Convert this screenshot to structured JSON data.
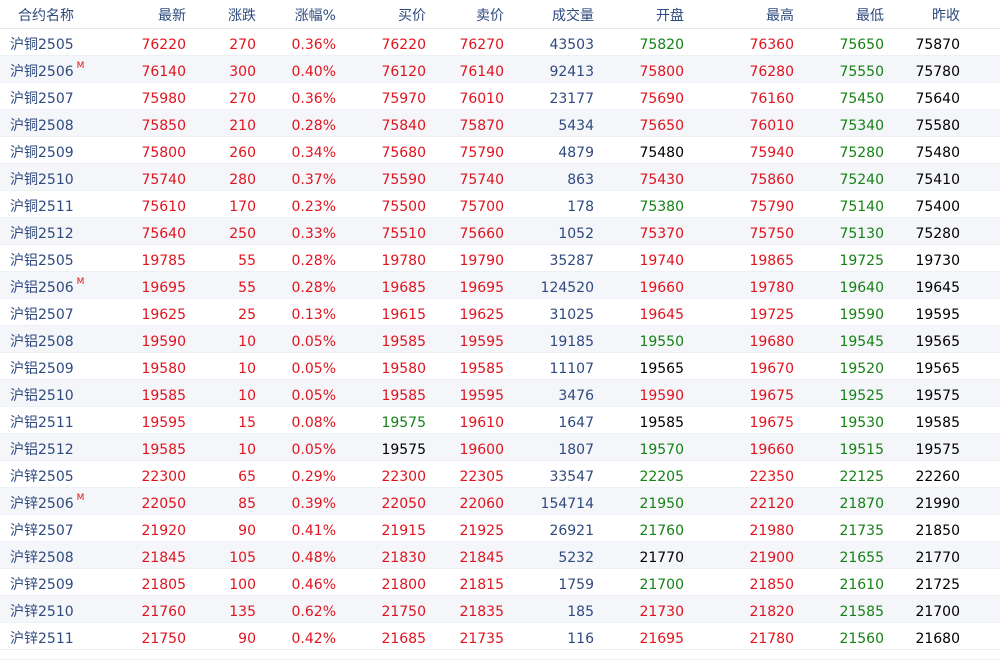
{
  "columns": {
    "name": "合约名称",
    "last": "最新",
    "change": "涨跌",
    "pct": "涨幅%",
    "bid": "买价",
    "ask": "卖价",
    "volume": "成交量",
    "open": "开盘",
    "high": "最高",
    "low": "最低",
    "prev": "昨收"
  },
  "colors": {
    "up": "#e1141e",
    "down": "#148214",
    "flat": "#000000",
    "label": "#2f4a7f"
  },
  "rows": [
    {
      "name": "沪铜2505",
      "mark": "",
      "last": "76220",
      "change": "270",
      "pct": "0.36%",
      "bid": "76220",
      "ask": "76270",
      "volume": "43503",
      "open": "75820",
      "high": "76360",
      "low": "75650",
      "prev": "75870"
    },
    {
      "name": "沪铜2506",
      "mark": "M",
      "last": "76140",
      "change": "300",
      "pct": "0.40%",
      "bid": "76120",
      "ask": "76140",
      "volume": "92413",
      "open": "75800",
      "high": "76280",
      "low": "75550",
      "prev": "75780"
    },
    {
      "name": "沪铜2507",
      "mark": "",
      "last": "75980",
      "change": "270",
      "pct": "0.36%",
      "bid": "75970",
      "ask": "76010",
      "volume": "23177",
      "open": "75690",
      "high": "76160",
      "low": "75450",
      "prev": "75640"
    },
    {
      "name": "沪铜2508",
      "mark": "",
      "last": "75850",
      "change": "210",
      "pct": "0.28%",
      "bid": "75840",
      "ask": "75870",
      "volume": "5434",
      "open": "75650",
      "high": "76010",
      "low": "75340",
      "prev": "75580"
    },
    {
      "name": "沪铜2509",
      "mark": "",
      "last": "75800",
      "change": "260",
      "pct": "0.34%",
      "bid": "75680",
      "ask": "75790",
      "volume": "4879",
      "open": "75480",
      "high": "75940",
      "low": "75280",
      "prev": "75480"
    },
    {
      "name": "沪铜2510",
      "mark": "",
      "last": "75740",
      "change": "280",
      "pct": "0.37%",
      "bid": "75590",
      "ask": "75740",
      "volume": "863",
      "open": "75430",
      "high": "75860",
      "low": "75240",
      "prev": "75410"
    },
    {
      "name": "沪铜2511",
      "mark": "",
      "last": "75610",
      "change": "170",
      "pct": "0.23%",
      "bid": "75500",
      "ask": "75700",
      "volume": "178",
      "open": "75380",
      "high": "75790",
      "low": "75140",
      "prev": "75400"
    },
    {
      "name": "沪铜2512",
      "mark": "",
      "last": "75640",
      "change": "250",
      "pct": "0.33%",
      "bid": "75510",
      "ask": "75660",
      "volume": "1052",
      "open": "75370",
      "high": "75750",
      "low": "75130",
      "prev": "75280"
    },
    {
      "name": "沪铝2505",
      "mark": "",
      "last": "19785",
      "change": "55",
      "pct": "0.28%",
      "bid": "19780",
      "ask": "19790",
      "volume": "35287",
      "open": "19740",
      "high": "19865",
      "low": "19725",
      "prev": "19730"
    },
    {
      "name": "沪铝2506",
      "mark": "M",
      "last": "19695",
      "change": "55",
      "pct": "0.28%",
      "bid": "19685",
      "ask": "19695",
      "volume": "124520",
      "open": "19660",
      "high": "19780",
      "low": "19640",
      "prev": "19645"
    },
    {
      "name": "沪铝2507",
      "mark": "",
      "last": "19625",
      "change": "25",
      "pct": "0.13%",
      "bid": "19615",
      "ask": "19625",
      "volume": "31025",
      "open": "19645",
      "high": "19725",
      "low": "19590",
      "prev": "19595"
    },
    {
      "name": "沪铝2508",
      "mark": "",
      "last": "19590",
      "change": "10",
      "pct": "0.05%",
      "bid": "19585",
      "ask": "19595",
      "volume": "19185",
      "open": "19550",
      "high": "19680",
      "low": "19545",
      "prev": "19565"
    },
    {
      "name": "沪铝2509",
      "mark": "",
      "last": "19580",
      "change": "10",
      "pct": "0.05%",
      "bid": "19580",
      "ask": "19585",
      "volume": "11107",
      "open": "19565",
      "high": "19670",
      "low": "19520",
      "prev": "19565"
    },
    {
      "name": "沪铝2510",
      "mark": "",
      "last": "19585",
      "change": "10",
      "pct": "0.05%",
      "bid": "19585",
      "ask": "19595",
      "volume": "3476",
      "open": "19590",
      "high": "19675",
      "low": "19525",
      "prev": "19575"
    },
    {
      "name": "沪铝2511",
      "mark": "",
      "last": "19595",
      "change": "15",
      "pct": "0.08%",
      "bid": "19575",
      "ask": "19610",
      "volume": "1647",
      "open": "19585",
      "high": "19675",
      "low": "19530",
      "prev": "19585"
    },
    {
      "name": "沪铝2512",
      "mark": "",
      "last": "19585",
      "change": "10",
      "pct": "0.05%",
      "bid": "19575",
      "ask": "19600",
      "volume": "1807",
      "open": "19570",
      "high": "19660",
      "low": "19515",
      "prev": "19575"
    },
    {
      "name": "沪锌2505",
      "mark": "",
      "last": "22300",
      "change": "65",
      "pct": "0.29%",
      "bid": "22300",
      "ask": "22305",
      "volume": "33547",
      "open": "22205",
      "high": "22350",
      "low": "22125",
      "prev": "22260"
    },
    {
      "name": "沪锌2506",
      "mark": "M",
      "last": "22050",
      "change": "85",
      "pct": "0.39%",
      "bid": "22050",
      "ask": "22060",
      "volume": "154714",
      "open": "21950",
      "high": "22120",
      "low": "21870",
      "prev": "21990"
    },
    {
      "name": "沪锌2507",
      "mark": "",
      "last": "21920",
      "change": "90",
      "pct": "0.41%",
      "bid": "21915",
      "ask": "21925",
      "volume": "26921",
      "open": "21760",
      "high": "21980",
      "low": "21735",
      "prev": "21850"
    },
    {
      "name": "沪锌2508",
      "mark": "",
      "last": "21845",
      "change": "105",
      "pct": "0.48%",
      "bid": "21830",
      "ask": "21845",
      "volume": "5232",
      "open": "21770",
      "high": "21900",
      "low": "21655",
      "prev": "21770"
    },
    {
      "name": "沪锌2509",
      "mark": "",
      "last": "21805",
      "change": "100",
      "pct": "0.46%",
      "bid": "21800",
      "ask": "21815",
      "volume": "1759",
      "open": "21700",
      "high": "21850",
      "low": "21610",
      "prev": "21725"
    },
    {
      "name": "沪锌2510",
      "mark": "",
      "last": "21760",
      "change": "135",
      "pct": "0.62%",
      "bid": "21750",
      "ask": "21835",
      "volume": "185",
      "open": "21730",
      "high": "21820",
      "low": "21585",
      "prev": "21700"
    },
    {
      "name": "沪锌2511",
      "mark": "",
      "last": "21750",
      "change": "90",
      "pct": "0.42%",
      "bid": "21685",
      "ask": "21735",
      "volume": "116",
      "open": "21695",
      "high": "21780",
      "low": "21560",
      "prev": "21680"
    }
  ]
}
